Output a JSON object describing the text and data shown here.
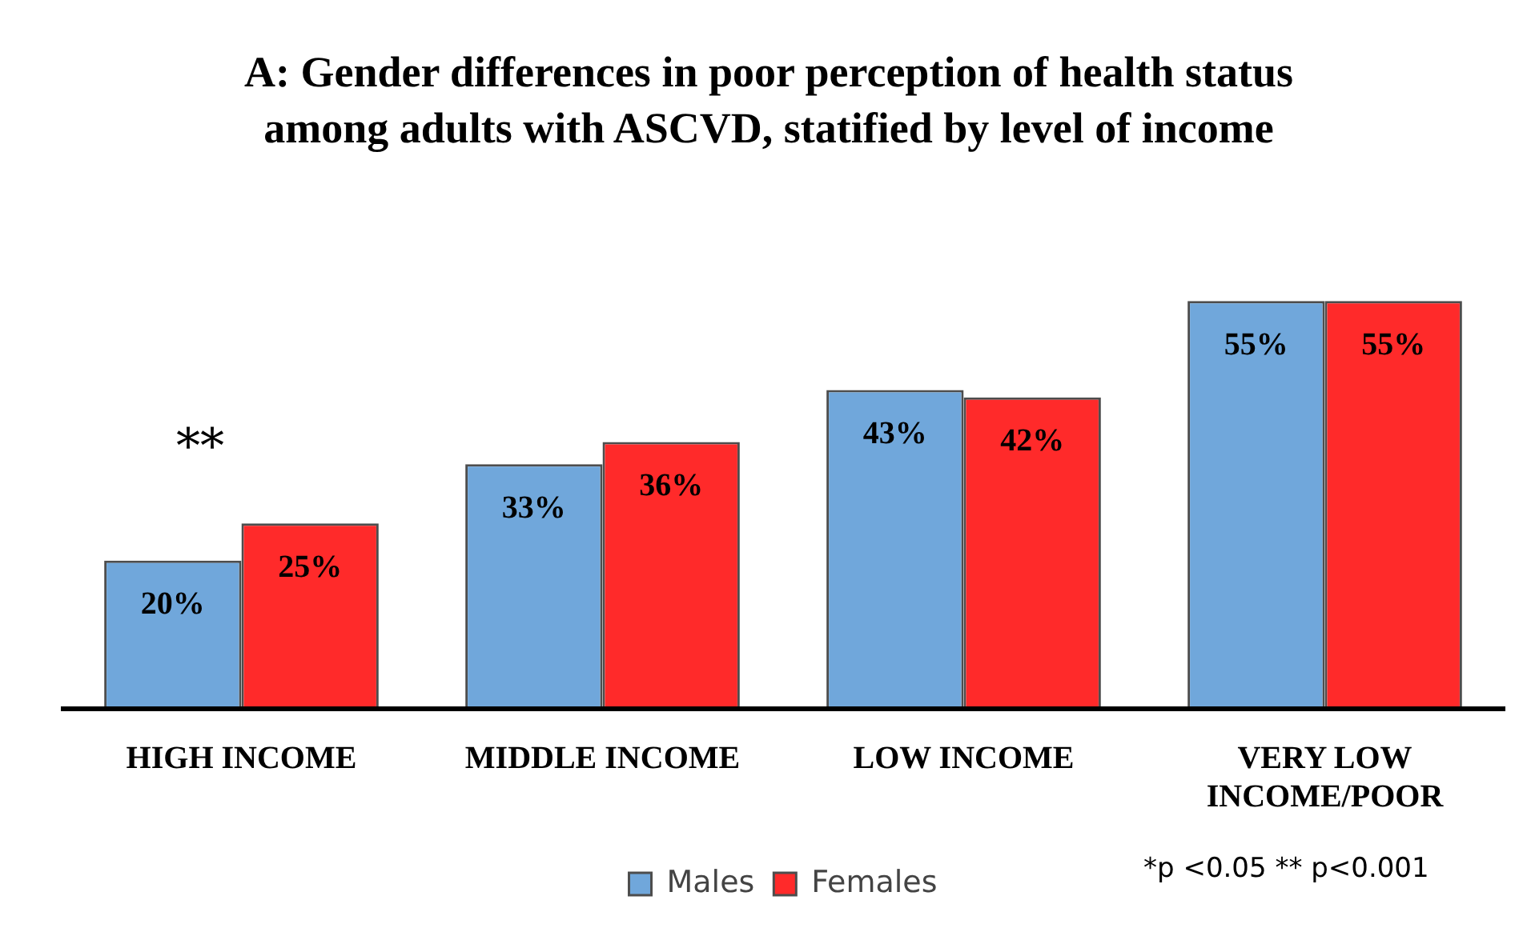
{
  "chart_data": {
    "type": "bar",
    "title": "A: Gender differences in poor perception of health status among adults with ASCVD, statified by level of income",
    "categories": [
      "HIGH INCOME",
      "MIDDLE INCOME",
      "LOW INCOME",
      "VERY LOW INCOME/POOR"
    ],
    "series": [
      {
        "name": "Males",
        "color": "#70a7db",
        "values": [
          20,
          33,
          43,
          55
        ],
        "value_labels": [
          "20%",
          "33%",
          "43%",
          "55%"
        ]
      },
      {
        "name": "Females",
        "color": "#ff2a2a",
        "values": [
          25,
          36,
          42,
          55
        ],
        "value_labels": [
          "25%",
          "36%",
          "42%",
          "55%"
        ]
      }
    ],
    "legend": "bottom",
    "grid": false,
    "tick_labels": "x",
    "annotations": [
      "**",
      "*p <0.05 ** p<0.001"
    ]
  }
}
